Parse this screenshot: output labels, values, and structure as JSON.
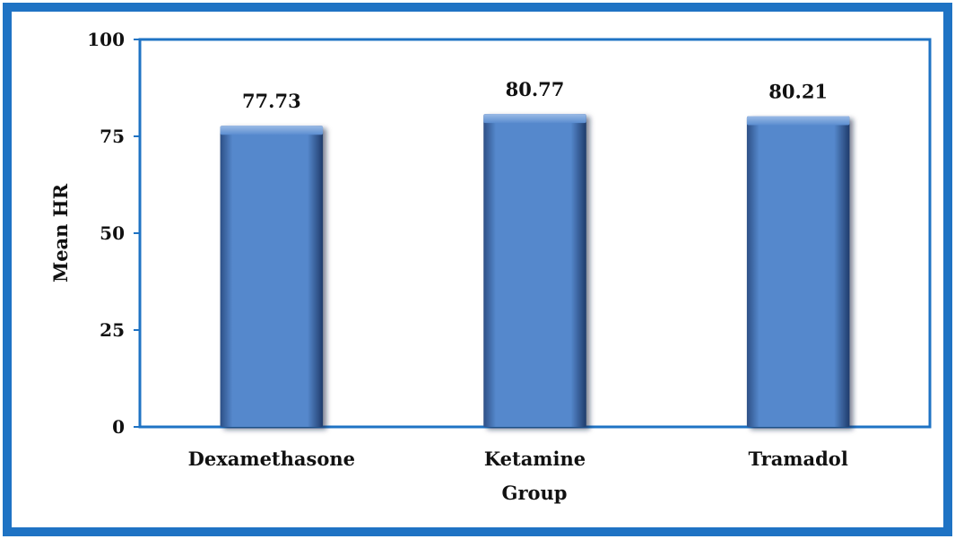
{
  "colors": {
    "frame": "#1f73c4",
    "plot_border": "#1f73c4",
    "bar_fill": "#5588cc",
    "bar_top": "#86a9dc",
    "bar_shadow": "#16325f"
  },
  "chart_data": {
    "type": "bar",
    "categories": [
      "Dexamethasone",
      "Ketamine",
      "Tramadol"
    ],
    "values": [
      77.73,
      80.77,
      80.21
    ],
    "data_labels": [
      "77.73",
      "80.77",
      "80.21"
    ],
    "title": "",
    "xlabel": "Group",
    "ylabel": "Mean HR",
    "ylim": [
      0,
      100
    ],
    "yticks": [
      0,
      25,
      50,
      75,
      100
    ],
    "grid": false,
    "legend": "none"
  }
}
